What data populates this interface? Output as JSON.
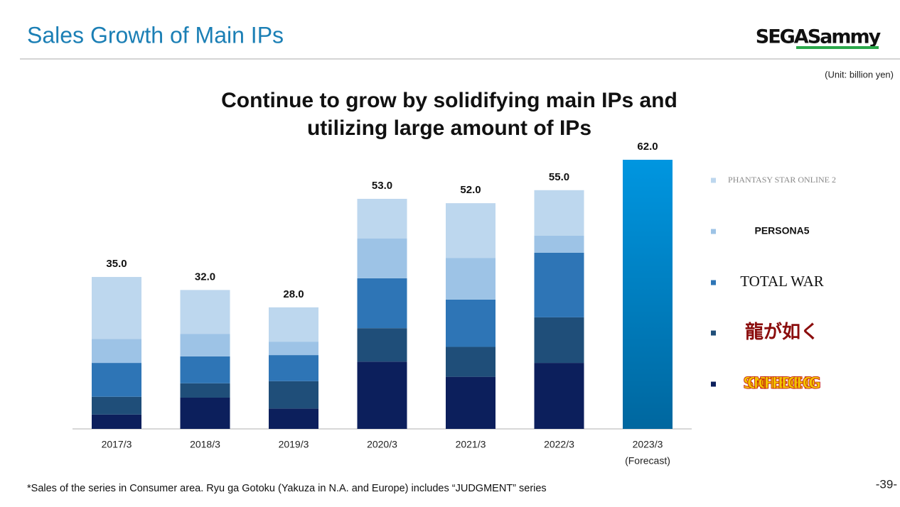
{
  "header": {
    "title": "Sales Growth of Main IPs",
    "logo": "SEGASammy",
    "unit": "(Unit: billion yen)"
  },
  "chart_data": {
    "type": "stacked_bar",
    "title": [
      "Continue to grow by solidifying main IPs and",
      "utilizing large amount of IPs"
    ],
    "categories": [
      "2017/3",
      "2018/3",
      "2019/3",
      "2020/3",
      "2021/3",
      "2022/3",
      "2023/3"
    ],
    "category_notes": [
      null,
      null,
      null,
      null,
      null,
      null,
      "(Forecast)"
    ],
    "series": [
      {
        "name": "SONIC THE HEDGEHOG",
        "color": "#0c1f5c",
        "values": [
          3.3,
          7.2,
          4.7,
          15.5,
          12.0,
          15.2,
          null
        ]
      },
      {
        "name": "龍が如く",
        "color": "#1f4e79",
        "values": [
          4.1,
          3.3,
          6.3,
          7.7,
          6.9,
          10.5,
          null
        ]
      },
      {
        "name": "TOTAL WAR",
        "color": "#2e75b6",
        "values": [
          7.8,
          6.2,
          6.0,
          11.5,
          10.9,
          14.9,
          null
        ]
      },
      {
        "name": "PERSONA5",
        "color": "#9dc3e6",
        "values": [
          5.5,
          5.2,
          3.1,
          9.2,
          9.6,
          3.9,
          null
        ]
      },
      {
        "name": "PHANTASY STAR ONLINE 2",
        "color": "#bdd7ee",
        "values": [
          14.3,
          10.1,
          7.9,
          9.1,
          12.6,
          10.5,
          null
        ]
      }
    ],
    "totals": {
      "values": [
        35,
        32,
        28,
        53,
        52,
        55,
        62
      ],
      "value_labels": [
        "35.0",
        "32.0",
        "28.0",
        "53.0",
        "52.0",
        "55.0",
        "62.0"
      ]
    },
    "forecast_color": [
      "#0096e0",
      "#00679f"
    ]
  },
  "footer": {
    "note": "*Sales of the series in Consumer area. Ryu ga Gotoku (Yakuza in N.A. and Europe) includes “JUDGMENT” series",
    "page": "-39-"
  }
}
